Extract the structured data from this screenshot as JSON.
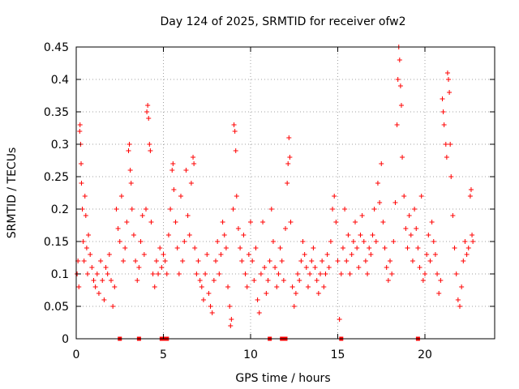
{
  "chart_data": {
    "type": "scatter",
    "title": "Day 124 of 2025, SRMTID for receiver ofw2",
    "xlabel": "GPS time / hours",
    "ylabel": "SRMTID / TECUs",
    "xlim": [
      0,
      24
    ],
    "ylim": [
      0,
      0.45
    ],
    "xticks": [
      0,
      5,
      10,
      15,
      20
    ],
    "yticks": [
      0,
      0.05,
      0.1,
      0.15,
      0.2,
      0.25,
      0.3,
      0.35,
      0.4,
      0.45
    ],
    "ytick_labels": [
      "0",
      "0.05",
      "0.1",
      "0.15",
      "0.2",
      "0.25",
      "0.3",
      "0.35",
      "0.4",
      "0.45"
    ],
    "grid": true,
    "marker": "+",
    "color": "#ff0000",
    "series": [
      {
        "name": "SRMTID",
        "points": [
          [
            0.05,
            0.1
          ],
          [
            0.1,
            0.12
          ],
          [
            0.15,
            0.08
          ],
          [
            0.2,
            0.32
          ],
          [
            0.22,
            0.33
          ],
          [
            0.25,
            0.3
          ],
          [
            0.28,
            0.27
          ],
          [
            0.3,
            0.24
          ],
          [
            0.35,
            0.2
          ],
          [
            0.4,
            0.15
          ],
          [
            0.45,
            0.12
          ],
          [
            0.5,
            0.22
          ],
          [
            0.55,
            0.19
          ],
          [
            0.6,
            0.14
          ],
          [
            0.65,
            0.1
          ],
          [
            0.7,
            0.16
          ],
          [
            0.8,
            0.13
          ],
          [
            0.9,
            0.11
          ],
          [
            1.0,
            0.09
          ],
          [
            1.1,
            0.08
          ],
          [
            1.2,
            0.1
          ],
          [
            1.3,
            0.07
          ],
          [
            1.4,
            0.12
          ],
          [
            1.5,
            0.09
          ],
          [
            1.6,
            0.06
          ],
          [
            1.7,
            0.11
          ],
          [
            1.8,
            0.1
          ],
          [
            1.9,
            0.13
          ],
          [
            2.0,
            0.09
          ],
          [
            2.1,
            0.05
          ],
          [
            2.2,
            0.08
          ],
          [
            2.3,
            0.2
          ],
          [
            2.4,
            0.17
          ],
          [
            2.5,
            0.15
          ],
          [
            2.6,
            0.22
          ],
          [
            2.7,
            0.12
          ],
          [
            2.8,
            0.14
          ],
          [
            2.9,
            0.18
          ],
          [
            3.0,
            0.29
          ],
          [
            3.05,
            0.3
          ],
          [
            3.1,
            0.26
          ],
          [
            3.15,
            0.24
          ],
          [
            3.2,
            0.2
          ],
          [
            3.3,
            0.16
          ],
          [
            3.4,
            0.12
          ],
          [
            3.5,
            0.09
          ],
          [
            3.6,
            0.11
          ],
          [
            3.7,
            0.15
          ],
          [
            3.8,
            0.19
          ],
          [
            3.9,
            0.13
          ],
          [
            4.0,
            0.2
          ],
          [
            4.05,
            0.35
          ],
          [
            4.1,
            0.36
          ],
          [
            4.15,
            0.34
          ],
          [
            4.2,
            0.3
          ],
          [
            4.25,
            0.29
          ],
          [
            4.3,
            0.18
          ],
          [
            4.4,
            0.1
          ],
          [
            4.5,
            0.08
          ],
          [
            4.6,
            0.12
          ],
          [
            4.7,
            0.1
          ],
          [
            4.8,
            0.14
          ],
          [
            4.9,
            0.11
          ],
          [
            5.0,
            0.13
          ],
          [
            5.1,
            0.12
          ],
          [
            5.2,
            0.1
          ],
          [
            5.3,
            0.16
          ],
          [
            5.4,
            0.2
          ],
          [
            5.5,
            0.26
          ],
          [
            5.55,
            0.27
          ],
          [
            5.6,
            0.23
          ],
          [
            5.7,
            0.18
          ],
          [
            5.8,
            0.14
          ],
          [
            5.9,
            0.1
          ],
          [
            6.0,
            0.22
          ],
          [
            6.1,
            0.12
          ],
          [
            6.2,
            0.15
          ],
          [
            6.3,
            0.26
          ],
          [
            6.4,
            0.19
          ],
          [
            6.5,
            0.16
          ],
          [
            6.6,
            0.24
          ],
          [
            6.7,
            0.28
          ],
          [
            6.75,
            0.27
          ],
          [
            6.8,
            0.14
          ],
          [
            6.9,
            0.1
          ],
          [
            7.0,
            0.12
          ],
          [
            7.1,
            0.09
          ],
          [
            7.2,
            0.08
          ],
          [
            7.3,
            0.06
          ],
          [
            7.4,
            0.1
          ],
          [
            7.5,
            0.13
          ],
          [
            7.6,
            0.07
          ],
          [
            7.7,
            0.05
          ],
          [
            7.8,
            0.04
          ],
          [
            7.9,
            0.09
          ],
          [
            8.0,
            0.12
          ],
          [
            8.1,
            0.15
          ],
          [
            8.2,
            0.1
          ],
          [
            8.3,
            0.13
          ],
          [
            8.4,
            0.18
          ],
          [
            8.5,
            0.16
          ],
          [
            8.6,
            0.14
          ],
          [
            8.7,
            0.08
          ],
          [
            8.8,
            0.05
          ],
          [
            8.85,
            0.02
          ],
          [
            8.9,
            0.03
          ],
          [
            9.0,
            0.2
          ],
          [
            9.05,
            0.33
          ],
          [
            9.1,
            0.32
          ],
          [
            9.15,
            0.29
          ],
          [
            9.2,
            0.22
          ],
          [
            9.3,
            0.17
          ],
          [
            9.4,
            0.14
          ],
          [
            9.5,
            0.12
          ],
          [
            9.6,
            0.16
          ],
          [
            9.7,
            0.1
          ],
          [
            9.8,
            0.08
          ],
          [
            9.9,
            0.13
          ],
          [
            10.0,
            0.18
          ],
          [
            10.1,
            0.12
          ],
          [
            10.2,
            0.09
          ],
          [
            10.3,
            0.14
          ],
          [
            10.4,
            0.06
          ],
          [
            10.5,
            0.04
          ],
          [
            10.6,
            0.1
          ],
          [
            10.7,
            0.18
          ],
          [
            10.8,
            0.11
          ],
          [
            10.9,
            0.07
          ],
          [
            11.0,
            0.09
          ],
          [
            11.1,
            0.12
          ],
          [
            11.2,
            0.2
          ],
          [
            11.3,
            0.15
          ],
          [
            11.4,
            0.11
          ],
          [
            11.5,
            0.08
          ],
          [
            11.6,
            0.1
          ],
          [
            11.7,
            0.14
          ],
          [
            11.8,
            0.12
          ],
          [
            11.9,
            0.09
          ],
          [
            12.0,
            0.17
          ],
          [
            12.1,
            0.24
          ],
          [
            12.15,
            0.27
          ],
          [
            12.2,
            0.31
          ],
          [
            12.25,
            0.28
          ],
          [
            12.3,
            0.18
          ],
          [
            12.4,
            0.08
          ],
          [
            12.5,
            0.05
          ],
          [
            12.6,
            0.07
          ],
          [
            12.7,
            0.1
          ],
          [
            12.8,
            0.09
          ],
          [
            12.9,
            0.12
          ],
          [
            13.0,
            0.15
          ],
          [
            13.1,
            0.13
          ],
          [
            13.2,
            0.11
          ],
          [
            13.3,
            0.08
          ],
          [
            13.4,
            0.1
          ],
          [
            13.5,
            0.12
          ],
          [
            13.6,
            0.14
          ],
          [
            13.7,
            0.11
          ],
          [
            13.8,
            0.09
          ],
          [
            13.9,
            0.07
          ],
          [
            14.0,
            0.1
          ],
          [
            14.1,
            0.12
          ],
          [
            14.2,
            0.08
          ],
          [
            14.3,
            0.1
          ],
          [
            14.4,
            0.13
          ],
          [
            14.5,
            0.11
          ],
          [
            14.6,
            0.15
          ],
          [
            14.7,
            0.2
          ],
          [
            14.8,
            0.22
          ],
          [
            14.9,
            0.18
          ],
          [
            15.0,
            0.12
          ],
          [
            15.1,
            0.03
          ],
          [
            15.2,
            0.1
          ],
          [
            15.3,
            0.14
          ],
          [
            15.4,
            0.2
          ],
          [
            15.5,
            0.12
          ],
          [
            15.6,
            0.16
          ],
          [
            15.7,
            0.1
          ],
          [
            15.8,
            0.13
          ],
          [
            15.9,
            0.15
          ],
          [
            16.0,
            0.18
          ],
          [
            16.1,
            0.14
          ],
          [
            16.2,
            0.11
          ],
          [
            16.3,
            0.16
          ],
          [
            16.4,
            0.19
          ],
          [
            16.5,
            0.15
          ],
          [
            16.6,
            0.12
          ],
          [
            16.7,
            0.1
          ],
          [
            16.8,
            0.14
          ],
          [
            16.9,
            0.13
          ],
          [
            17.0,
            0.16
          ],
          [
            17.1,
            0.2
          ],
          [
            17.2,
            0.15
          ],
          [
            17.3,
            0.24
          ],
          [
            17.4,
            0.21
          ],
          [
            17.5,
            0.27
          ],
          [
            17.6,
            0.18
          ],
          [
            17.7,
            0.14
          ],
          [
            17.8,
            0.11
          ],
          [
            17.9,
            0.09
          ],
          [
            18.0,
            0.12
          ],
          [
            18.1,
            0.1
          ],
          [
            18.2,
            0.15
          ],
          [
            18.3,
            0.21
          ],
          [
            18.4,
            0.33
          ],
          [
            18.45,
            0.4
          ],
          [
            18.5,
            0.45
          ],
          [
            18.55,
            0.43
          ],
          [
            18.6,
            0.39
          ],
          [
            18.65,
            0.36
          ],
          [
            18.7,
            0.28
          ],
          [
            18.8,
            0.22
          ],
          [
            18.9,
            0.17
          ],
          [
            19.0,
            0.14
          ],
          [
            19.1,
            0.19
          ],
          [
            19.2,
            0.16
          ],
          [
            19.3,
            0.12
          ],
          [
            19.4,
            0.2
          ],
          [
            19.5,
            0.17
          ],
          [
            19.6,
            0.14
          ],
          [
            19.7,
            0.11
          ],
          [
            19.8,
            0.22
          ],
          [
            19.9,
            0.09
          ],
          [
            20.0,
            0.1
          ],
          [
            20.1,
            0.13
          ],
          [
            20.2,
            0.16
          ],
          [
            20.3,
            0.12
          ],
          [
            20.4,
            0.18
          ],
          [
            20.5,
            0.15
          ],
          [
            20.6,
            0.13
          ],
          [
            20.7,
            0.1
          ],
          [
            20.8,
            0.07
          ],
          [
            20.9,
            0.09
          ],
          [
            21.0,
            0.37
          ],
          [
            21.05,
            0.35
          ],
          [
            21.1,
            0.33
          ],
          [
            21.2,
            0.3
          ],
          [
            21.25,
            0.28
          ],
          [
            21.3,
            0.41
          ],
          [
            21.35,
            0.4
          ],
          [
            21.4,
            0.38
          ],
          [
            21.45,
            0.3
          ],
          [
            21.5,
            0.25
          ],
          [
            21.6,
            0.19
          ],
          [
            21.7,
            0.14
          ],
          [
            21.8,
            0.1
          ],
          [
            21.9,
            0.06
          ],
          [
            22.0,
            0.05
          ],
          [
            22.1,
            0.08
          ],
          [
            22.2,
            0.12
          ],
          [
            22.3,
            0.15
          ],
          [
            22.4,
            0.13
          ],
          [
            22.5,
            0.14
          ],
          [
            22.6,
            0.22
          ],
          [
            22.65,
            0.23
          ],
          [
            22.7,
            0.16
          ],
          [
            22.75,
            0.15
          ]
        ]
      }
    ],
    "zero_markers": [
      2.5,
      3.6,
      4.9,
      5.0,
      5.1,
      5.2,
      11.1,
      11.8,
      11.9,
      12.0,
      15.2,
      19.6
    ]
  }
}
